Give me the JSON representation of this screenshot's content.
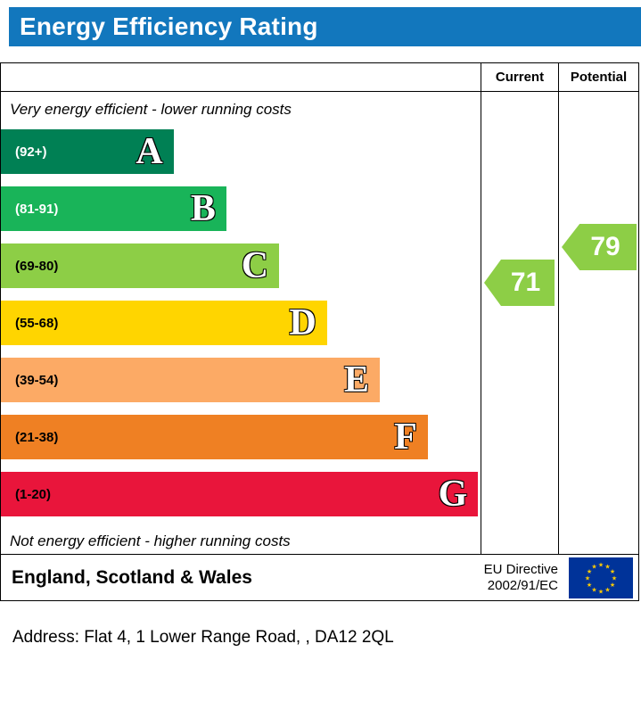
{
  "header": {
    "title": "Energy Efficiency Rating",
    "title_bg": "#1277bd"
  },
  "table": {
    "current_label": "Current",
    "potential_label": "Potential",
    "top_note": "Very energy efficient - lower running costs",
    "bottom_note": "Not energy efficient - higher running costs"
  },
  "bands": [
    {
      "letter": "A",
      "range": "(92+)",
      "color": "#008054",
      "width_pct": 36,
      "text_color": "#ffffff"
    },
    {
      "letter": "B",
      "range": "(81-91)",
      "color": "#19b459",
      "width_pct": 47,
      "text_color": "#ffffff"
    },
    {
      "letter": "C",
      "range": "(69-80)",
      "color": "#8dce46",
      "width_pct": 58,
      "text_color": "#000000"
    },
    {
      "letter": "D",
      "range": "(55-68)",
      "color": "#ffd500",
      "width_pct": 68,
      "text_color": "#000000"
    },
    {
      "letter": "E",
      "range": "(39-54)",
      "color": "#fcaa65",
      "width_pct": 79,
      "text_color": "#000000"
    },
    {
      "letter": "F",
      "range": "(21-38)",
      "color": "#ef8023",
      "width_pct": 89,
      "text_color": "#000000"
    },
    {
      "letter": "G",
      "range": "(1-20)",
      "color": "#e9153b",
      "width_pct": 99.5,
      "text_color": "#000000"
    }
  ],
  "ratings": {
    "current": {
      "value": "71",
      "color": "#8dce46"
    },
    "potential": {
      "value": "79",
      "color": "#8dce46"
    }
  },
  "footer": {
    "region": "England, Scotland & Wales",
    "directive_line1": "EU Directive",
    "directive_line2": "2002/91/EC",
    "eu_flag_bg": "#003399",
    "eu_flag_star": "#ffcc00"
  },
  "address": "Address: Flat 4, 1 Lower Range Road, , DA12 2QL",
  "chart_data": {
    "type": "bar",
    "title": "Energy Efficiency Rating",
    "categories": [
      "A",
      "B",
      "C",
      "D",
      "E",
      "F",
      "G"
    ],
    "band_ranges": [
      "92+",
      "81-91",
      "69-80",
      "55-68",
      "39-54",
      "21-38",
      "1-20"
    ],
    "band_colors": [
      "#008054",
      "#19b459",
      "#8dce46",
      "#ffd500",
      "#fcaa65",
      "#ef8023",
      "#e9153b"
    ],
    "bar_relative_widths_pct": [
      36,
      47,
      58,
      68,
      79,
      89,
      99.5
    ],
    "current": 71,
    "current_band": "C",
    "potential": 79,
    "potential_band": "C",
    "top_annotation": "Very energy efficient - lower running costs",
    "bottom_annotation": "Not energy efficient - higher running costs",
    "columns": [
      "Current",
      "Potential"
    ],
    "region": "England, Scotland & Wales",
    "directive": "EU Directive 2002/91/EC"
  }
}
